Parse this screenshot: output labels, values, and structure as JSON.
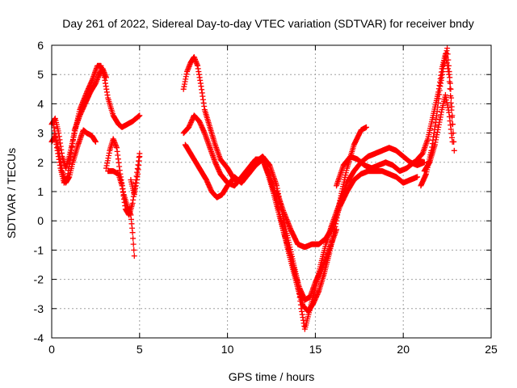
{
  "chart_data": {
    "type": "scatter",
    "title": "Day 261 of 2022, Sidereal Day-to-day VTEC variation (SDTVAR) for receiver bndy",
    "xlabel": "GPS time / hours",
    "ylabel": "SDTVAR / TECUs",
    "xlim": [
      0,
      25
    ],
    "ylim": [
      -4,
      6
    ],
    "xticks": [
      0,
      5,
      10,
      15,
      20,
      25
    ],
    "yticks": [
      -4,
      -3,
      -2,
      -1,
      0,
      1,
      2,
      3,
      4,
      5,
      6
    ],
    "grid": true,
    "marker": "plus",
    "color": "#ff0000",
    "series": [
      {
        "x": [
          0.0,
          0.2,
          0.4,
          0.6,
          0.8,
          1.0,
          1.3,
          1.6,
          2.0,
          2.3,
          2.6,
          2.8,
          3.0,
          3.2,
          3.5,
          3.8,
          4.0,
          4.3,
          4.6,
          4.8,
          5.0
        ],
        "y": [
          3.3,
          3.5,
          3.0,
          2.2,
          1.8,
          2.2,
          3.0,
          3.8,
          4.4,
          4.8,
          5.3,
          5.3,
          4.9,
          4.2,
          3.6,
          3.3,
          3.2,
          3.3,
          3.4,
          3.5,
          3.6
        ]
      },
      {
        "x": [
          0.0,
          0.2,
          0.4,
          0.6,
          0.8,
          1.0,
          1.2,
          1.5,
          1.8,
          2.0,
          2.3,
          2.5
        ],
        "y": [
          2.7,
          2.9,
          2.4,
          1.7,
          1.3,
          1.5,
          2.0,
          2.6,
          3.1,
          3.0,
          2.9,
          2.7
        ]
      },
      {
        "x": [
          0.1,
          0.3,
          0.5,
          0.7,
          0.9,
          1.1,
          1.3,
          1.6,
          1.9,
          2.2,
          2.5,
          2.7,
          2.9,
          3.1
        ],
        "y": [
          3.3,
          2.5,
          1.8,
          1.3,
          1.5,
          2.3,
          3.1,
          3.6,
          4.0,
          4.4,
          4.7,
          5.0,
          5.2,
          4.9
        ]
      },
      {
        "x": [
          3.1,
          3.3,
          3.5,
          3.7,
          3.9,
          4.1,
          4.3,
          4.5,
          4.6,
          4.7
        ],
        "y": [
          1.8,
          2.4,
          2.8,
          2.5,
          1.6,
          0.9,
          0.5,
          0.2,
          -0.4,
          -1.2
        ]
      },
      {
        "x": [
          3.2,
          3.5,
          3.8,
          4.0,
          4.2,
          4.4,
          4.6,
          4.8,
          5.0
        ],
        "y": [
          1.7,
          1.7,
          1.6,
          1.2,
          0.4,
          0.2,
          0.6,
          1.4,
          2.3
        ]
      },
      {
        "x": [
          4.5,
          4.7,
          4.9,
          5.0
        ],
        "y": [
          1.4,
          0.9,
          1.6,
          2.2
        ]
      },
      {
        "x": [
          7.5,
          7.7,
          7.9,
          8.1,
          8.3,
          8.5,
          8.7,
          9.0,
          9.3,
          9.6,
          10.0,
          10.4,
          10.8,
          11.2,
          11.6,
          12.0,
          12.3,
          12.6,
          12.9,
          13.2,
          13.5,
          13.8,
          14.1,
          14.4,
          14.7,
          15.0,
          15.3,
          15.6,
          15.9,
          16.2
        ],
        "y": [
          4.5,
          5.1,
          5.4,
          5.6,
          5.3,
          4.6,
          3.8,
          3.2,
          2.6,
          2.1,
          1.8,
          1.4,
          1.4,
          1.6,
          1.9,
          2.1,
          1.6,
          1.0,
          0.3,
          -0.4,
          -1.0,
          -1.7,
          -2.3,
          -2.7,
          -2.6,
          -2.1,
          -1.7,
          -1.3,
          -0.8,
          -0.3
        ]
      },
      {
        "x": [
          7.5,
          7.8,
          8.1,
          8.4,
          8.7,
          9.0,
          9.3,
          9.6,
          10.0,
          10.4,
          10.8,
          11.2,
          11.6,
          12.0,
          12.4,
          12.8,
          13.1,
          13.4,
          13.7,
          14.0,
          14.3,
          14.6,
          14.9,
          15.2,
          15.5,
          15.8,
          16.1,
          16.4,
          16.8,
          17.2,
          17.6,
          17.9
        ],
        "y": [
          3.0,
          3.2,
          3.6,
          3.4,
          3.0,
          2.5,
          2.0,
          1.6,
          1.3,
          1.2,
          1.5,
          1.8,
          2.1,
          2.1,
          1.5,
          0.7,
          -0.1,
          -0.9,
          -1.6,
          -2.3,
          -2.9,
          -3.1,
          -2.8,
          -2.4,
          -1.8,
          -1.1,
          -0.3,
          0.7,
          1.8,
          2.6,
          3.1,
          3.2
        ]
      },
      {
        "x": [
          7.6,
          7.9,
          8.2,
          8.5,
          8.8,
          9.1,
          9.4,
          9.7,
          10.0,
          10.4,
          10.8,
          11.2,
          11.6,
          12.0,
          12.4,
          12.8,
          13.1,
          13.4,
          13.7,
          14.0,
          14.2,
          14.4,
          14.7,
          15.0,
          15.3,
          15.6,
          15.9,
          16.2,
          16.5,
          16.8,
          17.2,
          17.6,
          18.0,
          18.4,
          18.8,
          19.2,
          19.6,
          20.0,
          20.4,
          20.8,
          21.2
        ],
        "y": [
          2.6,
          2.3,
          2.0,
          1.7,
          1.4,
          1.0,
          0.8,
          0.9,
          1.2,
          1.5,
          1.3,
          1.6,
          2.0,
          2.2,
          1.9,
          1.2,
          0.3,
          -0.5,
          -1.3,
          -2.1,
          -3.0,
          -3.7,
          -3.0,
          -2.3,
          -1.5,
          -0.8,
          -0.2,
          0.3,
          0.8,
          1.3,
          1.7,
          2.0,
          2.2,
          2.3,
          2.4,
          2.5,
          2.4,
          2.2,
          2.0,
          1.9,
          2.0
        ]
      },
      {
        "x": [
          12.8,
          13.2,
          13.6,
          14.0,
          14.4,
          14.8,
          15.2,
          15.6,
          16.0,
          16.4,
          16.8,
          17.2,
          17.6,
          18.0,
          18.4,
          18.8,
          19.2,
          19.6,
          20.0,
          20.4,
          20.8
        ],
        "y": [
          1.0,
          0.3,
          -0.3,
          -0.8,
          -0.9,
          -0.8,
          -0.8,
          -0.6,
          -0.2,
          0.5,
          1.0,
          1.4,
          1.6,
          1.7,
          1.7,
          1.7,
          1.6,
          1.5,
          1.3,
          1.4,
          1.5
        ]
      },
      {
        "x": [
          16.2,
          16.6,
          17.0,
          17.4,
          17.8,
          18.2,
          18.6,
          19.0,
          19.4,
          19.8,
          20.2,
          20.6,
          21.0
        ],
        "y": [
          1.2,
          1.9,
          2.2,
          2.1,
          1.9,
          1.8,
          1.9,
          2.0,
          1.9,
          1.7,
          1.8,
          2.0,
          2.1
        ]
      },
      {
        "x": [
          21.0,
          21.3,
          21.6,
          21.9,
          22.1,
          22.3,
          22.5,
          22.7,
          22.9
        ],
        "y": [
          1.2,
          1.6,
          2.4,
          3.6,
          4.6,
          5.3,
          5.9,
          4.5,
          2.4
        ]
      },
      {
        "x": [
          20.8,
          21.1,
          21.4,
          21.7,
          22.0,
          22.2,
          22.4,
          22.6,
          22.8
        ],
        "y": [
          2.1,
          2.3,
          2.8,
          3.6,
          4.4,
          5.2,
          5.7,
          5.0,
          3.3
        ]
      },
      {
        "x": [
          21.2,
          21.5,
          21.8,
          22.0,
          22.2,
          22.4,
          22.6,
          22.8
        ],
        "y": [
          1.7,
          2.0,
          2.6,
          3.2,
          3.8,
          4.3,
          3.7,
          2.7
        ]
      }
    ]
  }
}
